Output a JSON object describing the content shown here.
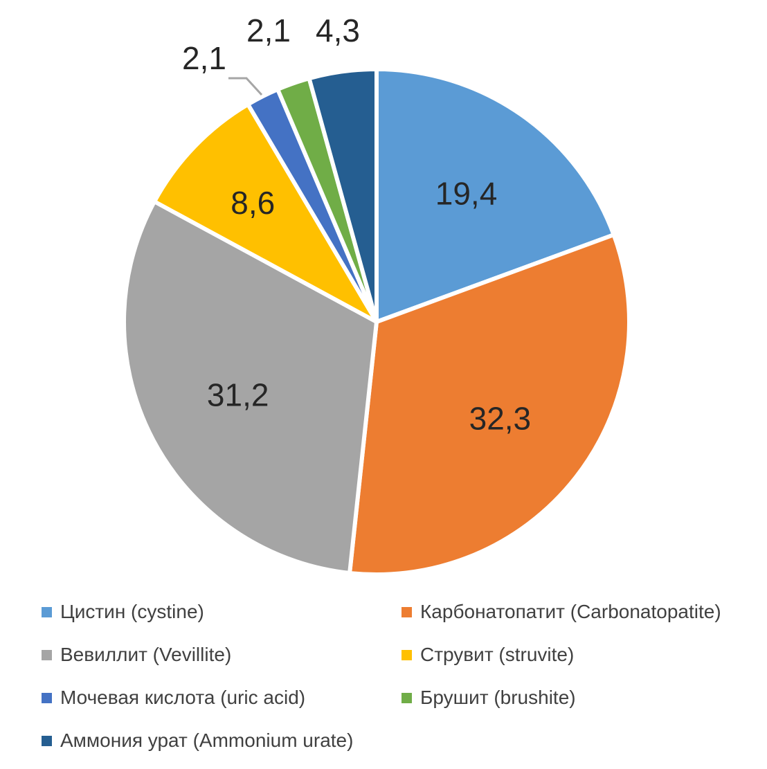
{
  "chart_data": {
    "type": "pie",
    "title": "",
    "slices": [
      {
        "label": "Цистин (cystine)",
        "value": 19.4,
        "value_label": "19,4",
        "color": "#5B9BD5"
      },
      {
        "label": "Карбонатопатит (Carbonatopatite)",
        "value": 32.3,
        "value_label": "32,3",
        "color": "#ED7D31"
      },
      {
        "label": "Вевиллит (Vevillite)",
        "value": 31.2,
        "value_label": "31,2",
        "color": "#A5A5A5"
      },
      {
        "label": "Струвит (struvite)",
        "value": 8.6,
        "value_label": "8,6",
        "color": "#FFC000"
      },
      {
        "label": "Мочевая кислота (uric acid)",
        "value": 2.1,
        "value_label": "2,1",
        "color": "#4472C4"
      },
      {
        "label": "Брушит (brushite)",
        "value": 2.1,
        "value_label": "2,1",
        "color": "#70AD47"
      },
      {
        "label": "Аммония урат (Ammonium urate)",
        "value": 4.3,
        "value_label": "4,3",
        "color": "#255E91"
      }
    ],
    "legend_position": "bottom",
    "start_angle": "12 o'clock",
    "direction": "clockwise"
  },
  "legend": {
    "items": [
      {
        "label": "Цистин (cystine)",
        "color": "#5B9BD5"
      },
      {
        "label": "Карбонатопатит (Carbonatopatite)",
        "color": "#ED7D31"
      },
      {
        "label": "Вевиллит (Vevillite)",
        "color": "#A5A5A5"
      },
      {
        "label": "Струвит (struvite)",
        "color": "#FFC000"
      },
      {
        "label": "Мочевая кислота (uric acid)",
        "color": "#4472C4"
      },
      {
        "label": "Брушит (brushite)",
        "color": "#70AD47"
      },
      {
        "label": "Аммония урат (Ammonium urate)",
        "color": "#255E91"
      }
    ]
  }
}
